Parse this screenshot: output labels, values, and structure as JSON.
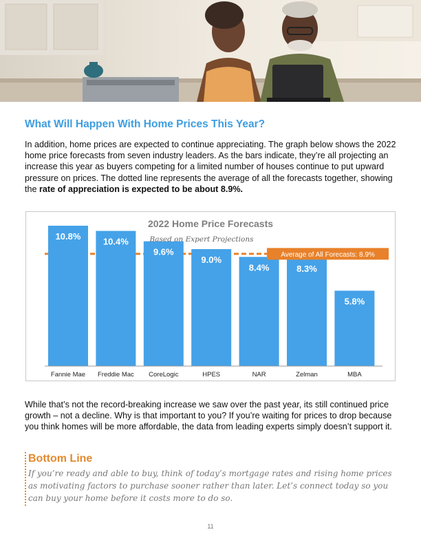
{
  "section_title": "What Will Happen With Home Prices This Year?",
  "intro": {
    "text": "In addition, home prices are expected to continue appreciating. The graph below shows the 2022 home price forecasts from seven industry leaders. As the bars indicate, they’re all projecting an increase this year as buyers competing for a limited number of houses continue to put upward pressure on prices. The dotted line represents the average of all the forecasts together, showing the ",
    "bold": "rate of appreciation is expected to be about 8.9%."
  },
  "chart_data": {
    "type": "bar",
    "title": "2022 Home Price Forecasts",
    "subtitle": "Based on Expert Projections",
    "categories": [
      "Fannie Mae",
      "Freddie Mac",
      "CoreLogic",
      "HPES",
      "NAR",
      "Zelman",
      "MBA"
    ],
    "values": [
      10.8,
      10.4,
      9.6,
      9.0,
      8.4,
      8.3,
      5.8
    ],
    "data_labels": [
      "10.8%",
      "10.4%",
      "9.6%",
      "9.0%",
      "8.4%",
      "8.3%",
      "5.8%"
    ],
    "ylim": [
      0,
      10.8
    ],
    "average": 8.9,
    "average_label": "Average of All Forecasts: 8.9%",
    "grid": false,
    "legend": "none",
    "bar_color": "#45a2e8",
    "average_color": "#e8812a"
  },
  "para2": "While that’s not the record-breaking increase we saw over the past year, its still continued price growth – not a decline. Why is that important to you? If you’re waiting for prices to drop because you think homes will be more affordable, the data from leading experts simply doesn’t support it.",
  "bottom_line": {
    "title": "Bottom Line",
    "text": "If you’re ready and able to buy, think of today’s mortgage rates and rising home prices as motivating factors to purchase sooner rather than later. Let’s connect today so you can buy your home before it costs more to do so."
  },
  "page_number": "11",
  "colors": {
    "heading": "#3e9ee0",
    "accent_orange": "#e38a2e",
    "bottom_text": "#777777"
  },
  "hero_image": "couple-in-kitchen-with-laptop-photo"
}
